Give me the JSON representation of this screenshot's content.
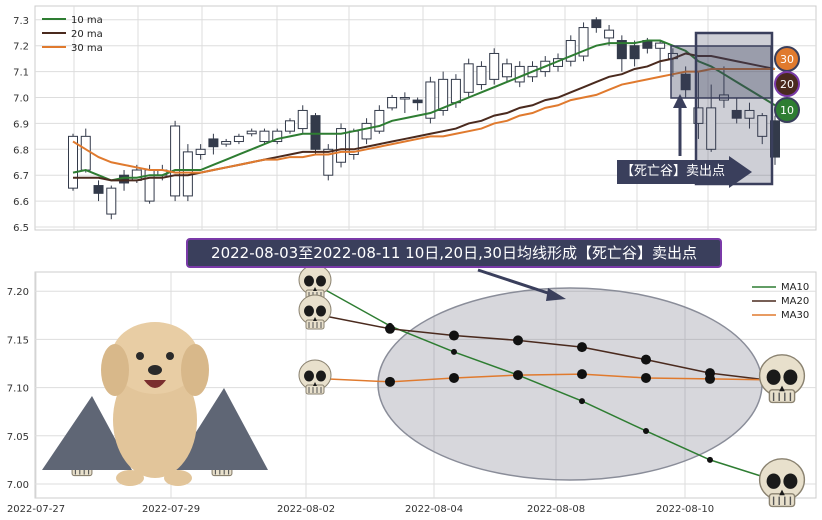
{
  "banner": {
    "text": "2022-08-03至2022-08-11 10日,20日,30日均线形成【死亡谷】卖出点"
  },
  "callout": {
    "text": "【死亡谷】卖出点"
  },
  "badges": {
    "b30": "30",
    "b20": "20",
    "b10": "10"
  },
  "colors": {
    "ma10": "#2e7d32",
    "ma20": "#4a2a1e",
    "ma30": "#e07a2e",
    "up": "#ffffff",
    "down": "#333a4a",
    "accent": "#3a3f5c"
  },
  "chart_data": [
    {
      "type": "candlestick",
      "title": "",
      "legend": [
        "10 ma",
        "20 ma",
        "30 ma"
      ],
      "legend_position": "top-left",
      "ylim": [
        6.5,
        7.32
      ],
      "yticks": [
        "6.5",
        "6.6",
        "6.7",
        "6.8",
        "6.9",
        "7.0",
        "7.1",
        "7.2",
        "7.3"
      ],
      "grid": true,
      "candles": [
        [
          6.65,
          6.85,
          6.64,
          6.86
        ],
        [
          6.72,
          6.85,
          6.71,
          6.88
        ],
        [
          6.66,
          6.63,
          6.6,
          6.68
        ],
        [
          6.55,
          6.65,
          6.53,
          6.66
        ],
        [
          6.7,
          6.67,
          6.64,
          6.72
        ],
        [
          6.68,
          6.72,
          6.67,
          6.74
        ],
        [
          6.6,
          6.72,
          6.59,
          6.74
        ],
        [
          6.7,
          6.72,
          6.68,
          6.74
        ],
        [
          6.62,
          6.89,
          6.6,
          6.91
        ],
        [
          6.62,
          6.79,
          6.6,
          6.82
        ],
        [
          6.78,
          6.8,
          6.76,
          6.82
        ],
        [
          6.84,
          6.81,
          6.78,
          6.86
        ],
        [
          6.82,
          6.83,
          6.81,
          6.84
        ],
        [
          6.83,
          6.85,
          6.82,
          6.86
        ],
        [
          6.86,
          6.87,
          6.85,
          6.88
        ],
        [
          6.83,
          6.87,
          6.82,
          6.88
        ],
        [
          6.83,
          6.87,
          6.82,
          6.88
        ],
        [
          6.87,
          6.91,
          6.86,
          6.92
        ],
        [
          6.88,
          6.95,
          6.86,
          6.97
        ],
        [
          6.93,
          6.8,
          6.78,
          6.94
        ],
        [
          6.7,
          6.8,
          6.68,
          6.82
        ],
        [
          6.75,
          6.88,
          6.73,
          6.9
        ],
        [
          6.78,
          6.87,
          6.76,
          6.88
        ],
        [
          6.84,
          6.9,
          6.82,
          6.92
        ],
        [
          6.87,
          6.95,
          6.86,
          6.97
        ],
        [
          6.96,
          7.0,
          6.95,
          7.01
        ],
        [
          7.0,
          7.0,
          6.94,
          7.02
        ],
        [
          6.99,
          6.98,
          6.95,
          7.0
        ],
        [
          6.92,
          7.06,
          6.9,
          7.08
        ],
        [
          6.95,
          7.07,
          6.93,
          7.1
        ],
        [
          6.98,
          7.07,
          6.96,
          7.09
        ],
        [
          7.02,
          7.13,
          7.0,
          7.15
        ],
        [
          7.05,
          7.12,
          7.03,
          7.14
        ],
        [
          7.07,
          7.17,
          7.05,
          7.19
        ],
        [
          7.08,
          7.13,
          7.06,
          7.15
        ],
        [
          7.06,
          7.12,
          7.04,
          7.14
        ],
        [
          7.08,
          7.12,
          7.06,
          7.14
        ],
        [
          7.1,
          7.14,
          7.08,
          7.16
        ],
        [
          7.12,
          7.15,
          7.1,
          7.17
        ],
        [
          7.14,
          7.22,
          7.12,
          7.24
        ],
        [
          7.16,
          7.27,
          7.14,
          7.29
        ],
        [
          7.3,
          7.27,
          7.25,
          7.31
        ],
        [
          7.23,
          7.26,
          7.2,
          7.28
        ],
        [
          7.22,
          7.15,
          7.1,
          7.24
        ],
        [
          7.2,
          7.15,
          7.12,
          7.22
        ],
        [
          7.22,
          7.19,
          7.17,
          7.23
        ],
        [
          7.19,
          7.21,
          7.1,
          7.22
        ],
        [
          7.15,
          7.17,
          7.08,
          7.19
        ],
        [
          7.09,
          7.03,
          7.0,
          7.12
        ],
        [
          6.9,
          6.96,
          6.84,
          7.1
        ],
        [
          6.8,
          6.96,
          6.79,
          7.05
        ],
        [
          6.99,
          7.01,
          6.96,
          7.12
        ],
        [
          6.95,
          6.92,
          6.9,
          7.0
        ],
        [
          6.92,
          6.95,
          6.88,
          6.98
        ],
        [
          6.85,
          6.93,
          6.82,
          6.94
        ],
        [
          6.91,
          6.77,
          6.74,
          6.93
        ]
      ],
      "series": [
        {
          "name": "10 ma",
          "values": [
            6.71,
            6.72,
            6.7,
            6.68,
            6.69,
            6.69,
            6.7,
            6.7,
            6.72,
            6.72,
            6.72,
            6.74,
            6.76,
            6.78,
            6.8,
            6.82,
            6.84,
            6.85,
            6.86,
            6.86,
            6.86,
            6.86,
            6.87,
            6.88,
            6.89,
            6.91,
            6.92,
            6.93,
            6.94,
            6.96,
            6.98,
            7.0,
            7.02,
            7.04,
            7.06,
            7.08,
            7.1,
            7.12,
            7.14,
            7.16,
            7.18,
            7.2,
            7.21,
            7.21,
            7.21,
            7.22,
            7.22,
            7.2,
            7.18,
            7.14,
            7.12,
            7.09,
            7.06,
            7.03,
            7.0,
            6.97
          ]
        },
        {
          "name": "20 ma",
          "values": [
            6.69,
            6.69,
            6.69,
            6.68,
            6.68,
            6.68,
            6.69,
            6.69,
            6.7,
            6.7,
            6.71,
            6.72,
            6.73,
            6.74,
            6.75,
            6.76,
            6.77,
            6.78,
            6.79,
            6.79,
            6.79,
            6.8,
            6.8,
            6.81,
            6.82,
            6.83,
            6.84,
            6.85,
            6.86,
            6.87,
            6.88,
            6.9,
            6.91,
            6.93,
            6.94,
            6.96,
            6.97,
            6.99,
            7.0,
            7.02,
            7.04,
            7.06,
            7.08,
            7.09,
            7.11,
            7.12,
            7.14,
            7.15,
            7.17,
            7.16,
            7.16,
            7.15,
            7.14,
            7.13,
            7.12,
            7.11
          ]
        },
        {
          "name": "30 ma",
          "values": [
            6.83,
            6.8,
            6.77,
            6.75,
            6.74,
            6.73,
            6.72,
            6.72,
            6.71,
            6.71,
            6.71,
            6.72,
            6.73,
            6.74,
            6.75,
            6.76,
            6.76,
            6.77,
            6.77,
            6.78,
            6.78,
            6.79,
            6.79,
            6.8,
            6.81,
            6.82,
            6.83,
            6.84,
            6.85,
            6.85,
            6.86,
            6.87,
            6.88,
            6.9,
            6.91,
            6.93,
            6.94,
            6.96,
            6.97,
            6.99,
            7.0,
            7.01,
            7.03,
            7.05,
            7.06,
            7.07,
            7.08,
            7.09,
            7.1,
            7.1,
            7.11,
            7.11,
            7.11,
            7.11,
            7.11,
            7.11
          ]
        }
      ]
    },
    {
      "type": "line",
      "title": "",
      "legend": [
        "MA10",
        "MA20",
        "MA30"
      ],
      "legend_position": "top-right",
      "x": [
        "2022-08-02",
        "2022-08-03",
        "2022-08-04",
        "2022-08-05",
        "2022-08-08",
        "2022-08-09",
        "2022-08-10",
        "2022-08-11"
      ],
      "xticks": [
        "2022-07-27",
        "2022-07-29",
        "2022-08-02",
        "2022-08-04",
        "2022-08-08",
        "2022-08-10"
      ],
      "ylim": [
        6.985,
        7.225
      ],
      "yticks": [
        "7.00",
        "7.05",
        "7.10",
        "7.15",
        "7.20"
      ],
      "grid": true,
      "series": [
        {
          "name": "MA10",
          "values": [
            7.201,
            7.164,
            7.137,
            7.113,
            7.086,
            7.055,
            7.025,
            7.004
          ]
        },
        {
          "name": "MA20",
          "values": [
            7.174,
            7.161,
            7.154,
            7.149,
            7.142,
            7.129,
            7.115,
            7.107
          ]
        },
        {
          "name": "MA30",
          "values": [
            7.109,
            7.106,
            7.11,
            7.113,
            7.114,
            7.11,
            7.109,
            7.108
          ]
        }
      ]
    }
  ]
}
